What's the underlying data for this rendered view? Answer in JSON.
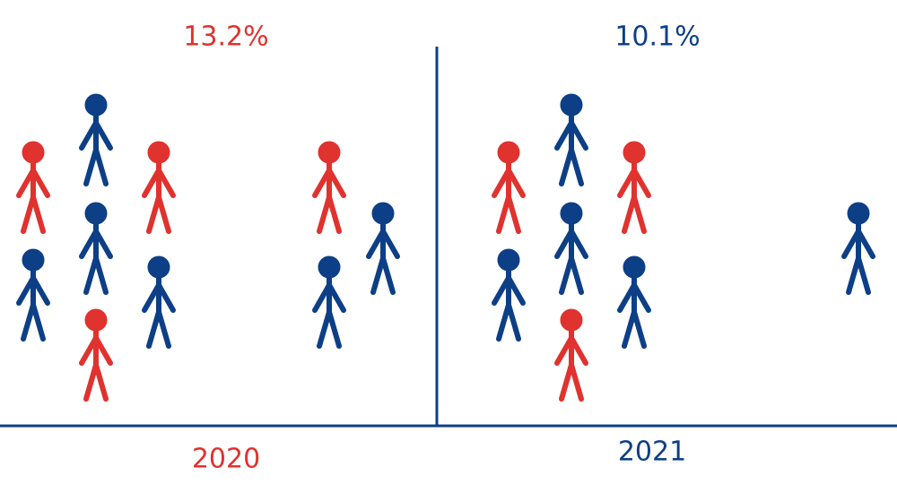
{
  "panels": [
    {
      "percent": "13.2%",
      "year": "2020"
    },
    {
      "percent": "10.1%",
      "year": "2021"
    }
  ]
}
